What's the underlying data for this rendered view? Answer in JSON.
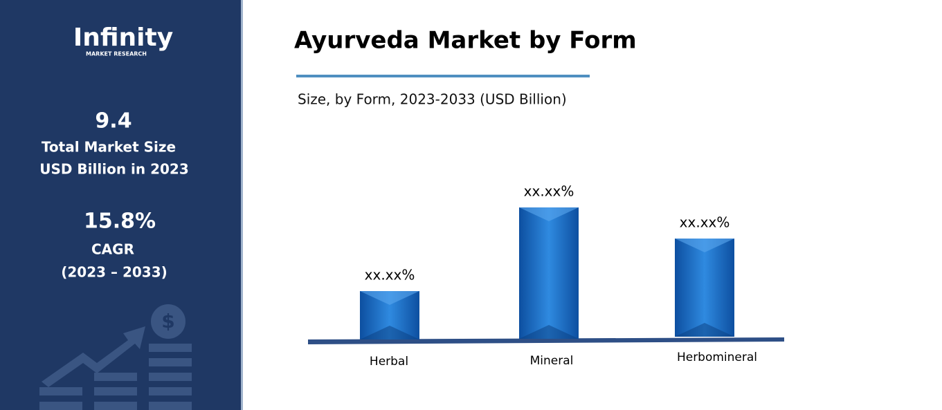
{
  "sidebar": {
    "logo": "Infinity",
    "logo_sub": "MARKET RESEARCH",
    "market_size": "9.4",
    "market_size_label": "Total Market Size",
    "market_size_unit": "USD Billion in 2023",
    "cagr": "15.8%",
    "cagr_label": "CAGR",
    "cagr_period": "(2023 – 2033)"
  },
  "chart_data": {
    "type": "bar",
    "title": "Ayurveda Market by Form",
    "subtitle": "Size, by Form, 2023-2033 (USD Billion)",
    "categories": [
      "Herbal",
      "Mineral",
      "Herbomineral"
    ],
    "values": [
      70,
      190,
      142
    ],
    "value_labels": [
      "xx.xx%",
      "xx.xx%",
      "xx.xx%"
    ],
    "color": "#1a6fc4"
  }
}
